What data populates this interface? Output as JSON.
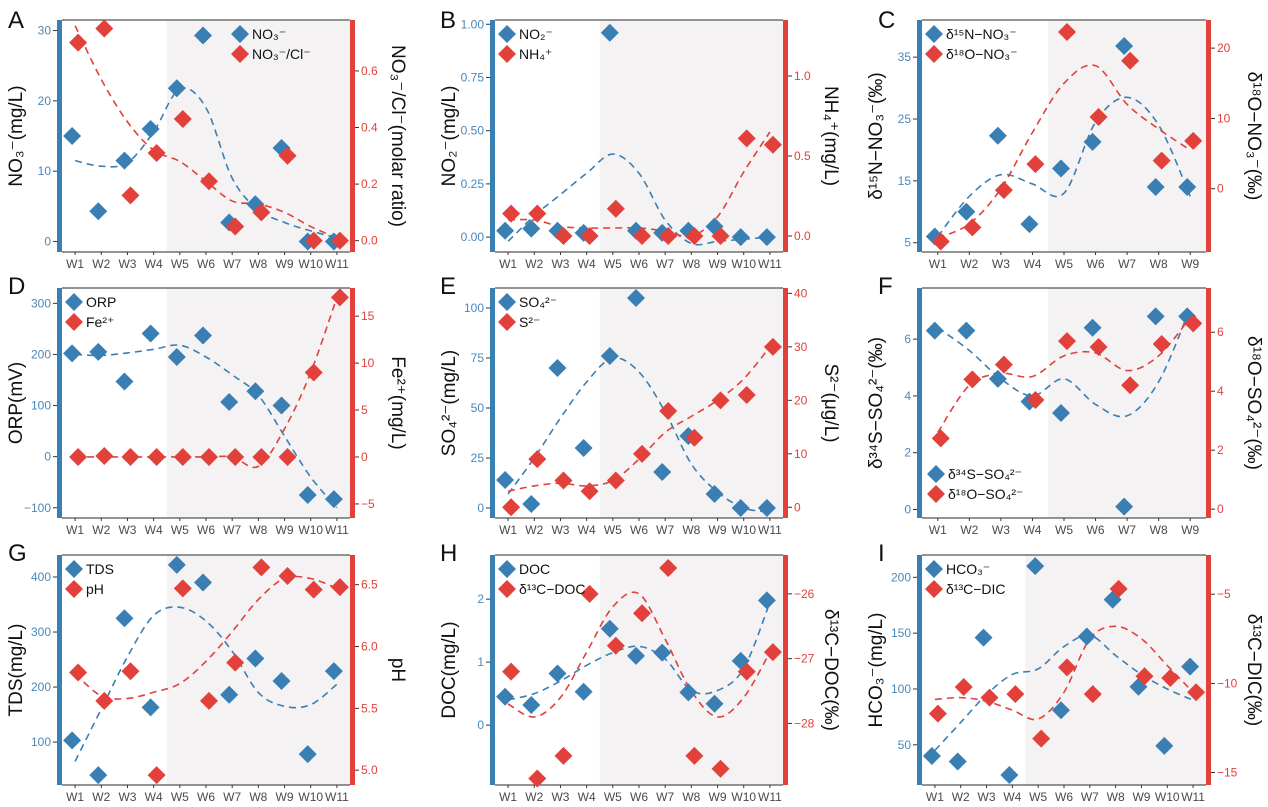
{
  "colors": {
    "blue": "#3a7fb4",
    "red": "#e2403b",
    "shade": "#f4f2f3",
    "tick_blue": "#4a88bb",
    "tick_red": "#e2403b"
  },
  "chart_data": [
    {
      "panel": "A",
      "type": "scatter",
      "categories": [
        "W1",
        "W2",
        "W3",
        "W4",
        "W5",
        "W6",
        "W7",
        "W8",
        "W9",
        "W10",
        "W11"
      ],
      "shaded_from": "W5",
      "left_axis": {
        "label": "NO₃⁻(mg/L)",
        "ylim": [
          -1.5,
          31.5
        ],
        "ticks": [
          0,
          10,
          20,
          30
        ],
        "tick_labels": [
          "0",
          "10",
          "20",
          "30"
        ]
      },
      "right_axis": {
        "label": "NO₃⁻/Cl⁻(molar ratio)",
        "ylim": [
          -0.04,
          0.78
        ],
        "ticks": [
          0,
          0.2,
          0.4,
          0.6
        ],
        "tick_labels": [
          "0.0",
          "0.2",
          "0.4",
          "0.6"
        ]
      },
      "legend_position": "top-right",
      "series": [
        {
          "name": "NO₃⁻",
          "axis": "left",
          "values": [
            15,
            4.3,
            11.5,
            16,
            21.8,
            29.3,
            2.7,
            5.3,
            13.3,
            0,
            0
          ],
          "trend": [
            11.5,
            10.7,
            11.2,
            15.6,
            21.7,
            19,
            9,
            4.5,
            2.7,
            1.5,
            0.5
          ]
        },
        {
          "name": "NO₃⁻/Cl⁻",
          "axis": "right",
          "values": [
            0.7,
            0.75,
            0.16,
            0.31,
            0.43,
            0.21,
            0.05,
            0.1,
            0.3,
            0,
            0
          ],
          "trend": [
            0.76,
            0.57,
            0.42,
            0.32,
            0.28,
            0.21,
            0.14,
            0.13,
            0.1,
            0.05,
            0.01
          ]
        }
      ]
    },
    {
      "panel": "B",
      "type": "scatter",
      "categories": [
        "W1",
        "W2",
        "W3",
        "W4",
        "W5",
        "W6",
        "W7",
        "W8",
        "W9",
        "W10",
        "W11"
      ],
      "shaded_from": "W5",
      "left_axis": {
        "label": "NO₂⁻(mg/L)",
        "ylim": [
          -0.07,
          1.02
        ],
        "ticks": [
          0,
          0.25,
          0.5,
          0.75,
          1
        ],
        "tick_labels": [
          "0.00",
          "0.25",
          "0.50",
          "0.75",
          "1.00"
        ]
      },
      "right_axis": {
        "label": "NH₄⁺(mg/L)",
        "ylim": [
          -0.1,
          1.35
        ],
        "ticks": [
          0,
          0.5,
          1
        ],
        "tick_labels": [
          "0.0",
          "0.5",
          "1.0"
        ]
      },
      "legend_position": "top-left",
      "series": [
        {
          "name": "NO₂⁻",
          "axis": "left",
          "values": [
            0.03,
            0.04,
            0.03,
            0.02,
            0.96,
            0.03,
            0.02,
            0.03,
            0.05,
            0,
            0
          ],
          "trend": [
            -0.02,
            0.1,
            0.2,
            0.3,
            0.39,
            0.3,
            0.08,
            -0.03,
            -0.02,
            -0.01,
            0
          ]
        },
        {
          "name": "NH₄⁺",
          "axis": "right",
          "values": [
            0.14,
            0.14,
            0,
            0,
            0.17,
            0,
            0,
            0,
            0,
            0.61,
            0.57
          ],
          "trend": [
            0.1,
            0.1,
            0.06,
            0.05,
            0.05,
            0.05,
            0.03,
            0,
            0.12,
            0.4,
            0.65
          ]
        }
      ]
    },
    {
      "panel": "C",
      "type": "scatter",
      "categories": [
        "W1",
        "W2",
        "W3",
        "W4",
        "W5",
        "W6",
        "W7",
        "W8",
        "W9"
      ],
      "shaded_from": "W5",
      "left_axis": {
        "label": "δ¹⁵N−NO₃⁻(‰)",
        "ylim": [
          3.5,
          41
        ],
        "ticks": [
          5,
          15,
          25,
          35
        ],
        "tick_labels": [
          "5",
          "15",
          "25",
          "35"
        ]
      },
      "right_axis": {
        "label": "δ¹⁸O−NO₃⁻(‰)",
        "ylim": [
          -9,
          24
        ],
        "ticks": [
          0,
          10,
          20
        ],
        "tick_labels": [
          "0",
          "10",
          "20"
        ]
      },
      "legend_position": "top-left",
      "series": [
        {
          "name": "δ¹⁵N−NO₃⁻",
          "axis": "left",
          "values": [
            6,
            10,
            22.3,
            8,
            17,
            21.3,
            36.8,
            14,
            14
          ],
          "trend": [
            6,
            12.5,
            16,
            14.5,
            13,
            24.5,
            28.5,
            24,
            12.5
          ]
        },
        {
          "name": "δ¹⁸O−NO₃⁻",
          "axis": "right",
          "values": [
            -7.5,
            -5.5,
            -0.2,
            3.5,
            22.3,
            10.2,
            18.2,
            4,
            6.8
          ],
          "trend": [
            -7,
            -5,
            0,
            8,
            15,
            17.5,
            12,
            8.5,
            5.5
          ]
        }
      ]
    },
    {
      "panel": "D",
      "type": "scatter",
      "categories": [
        "W1",
        "W2",
        "W3",
        "W4",
        "W5",
        "W6",
        "W7",
        "W8",
        "W9",
        "W10",
        "W11"
      ],
      "shaded_from": "W5",
      "left_axis": {
        "label": "ORP(mV)",
        "ylim": [
          -120,
          330
        ],
        "ticks": [
          -100,
          0,
          100,
          200,
          300
        ],
        "tick_labels": [
          "−100",
          "0",
          "100",
          "200",
          "300"
        ]
      },
      "right_axis": {
        "label": "Fe²⁺(mg/L)",
        "ylim": [
          -6.5,
          18
        ],
        "ticks": [
          -5,
          0,
          5,
          10,
          15
        ],
        "tick_labels": [
          "−5",
          "0",
          "5",
          "10",
          "15"
        ]
      },
      "legend_position": "top-left",
      "series": [
        {
          "name": "ORP",
          "axis": "left",
          "values": [
            202,
            205,
            147,
            241,
            195,
            237,
            107,
            128,
            100,
            -75,
            -83
          ],
          "trend": [
            200,
            198,
            203,
            210,
            218,
            195,
            160,
            120,
            40,
            -40,
            -100
          ]
        },
        {
          "name": "Fe²⁺",
          "axis": "right",
          "values": [
            0,
            0.1,
            0,
            0,
            0,
            0,
            0,
            0,
            0,
            9,
            17
          ],
          "trend": [
            0,
            0,
            0,
            0,
            0,
            0,
            0,
            -1,
            3,
            9,
            17
          ]
        }
      ]
    },
    {
      "panel": "E",
      "type": "scatter",
      "categories": [
        "W1",
        "W2",
        "W3",
        "W4",
        "W5",
        "W6",
        "W7",
        "W8",
        "W9",
        "W10",
        "W11"
      ],
      "shaded_from": "W5",
      "left_axis": {
        "label": "SO₄²⁻(mg/L)",
        "ylim": [
          -5,
          110
        ],
        "ticks": [
          0,
          25,
          50,
          75,
          100
        ],
        "tick_labels": [
          "0",
          "25",
          "50",
          "75",
          "100"
        ]
      },
      "right_axis": {
        "label": "S²⁻(μg/L)",
        "ylim": [
          -2,
          41
        ],
        "ticks": [
          0,
          10,
          20,
          30,
          40
        ],
        "tick_labels": [
          "0",
          "10",
          "20",
          "30",
          "40"
        ]
      },
      "legend_position": "top-left",
      "series": [
        {
          "name": "SO₄²⁻",
          "axis": "left",
          "values": [
            14,
            2,
            70,
            30,
            76,
            105,
            18,
            36,
            7,
            0,
            0
          ],
          "trend": [
            7,
            25,
            45,
            63,
            75,
            68,
            48,
            22,
            8,
            0,
            -2
          ]
        },
        {
          "name": "S²⁻",
          "axis": "right",
          "values": [
            0,
            9,
            5,
            3,
            5,
            10,
            18,
            13,
            20,
            21,
            30
          ],
          "trend": [
            3,
            4,
            4.5,
            4,
            5,
            9,
            14,
            17,
            20,
            24,
            30
          ]
        }
      ]
    },
    {
      "panel": "F",
      "type": "scatter",
      "categories": [
        "W1",
        "W2",
        "W3",
        "W4",
        "W5",
        "W6",
        "W7",
        "W8",
        "W9"
      ],
      "shaded_from": "W5",
      "left_axis": {
        "label": "δ³⁴S−SO₄²⁻(‰)",
        "ylim": [
          -0.3,
          7.8
        ],
        "ticks": [
          0,
          2,
          4,
          6
        ],
        "tick_labels": [
          "0",
          "2",
          "4",
          "6"
        ]
      },
      "right_axis": {
        "label": "δ¹⁸O−SO₄²⁻(‰)",
        "ylim": [
          -0.3,
          7.5
        ],
        "ticks": [
          0,
          2,
          4,
          6
        ],
        "tick_labels": [
          "0",
          "2",
          "4",
          "6"
        ]
      },
      "legend_position": "bottom-left",
      "series": [
        {
          "name": "δ³⁴S−SO₄²⁻",
          "axis": "left",
          "values": [
            6.3,
            6.3,
            4.6,
            3.8,
            3.4,
            6.4,
            0.1,
            6.8,
            6.8
          ],
          "trend": [
            6.4,
            5.6,
            4.6,
            4,
            4.6,
            3.7,
            3.3,
            4.5,
            7.1
          ]
        },
        {
          "name": "δ¹⁸O−SO₄²⁻",
          "axis": "right",
          "values": [
            2.4,
            4.4,
            4.9,
            3.7,
            5.7,
            5.5,
            4.2,
            5.6,
            6.3
          ],
          "trend": [
            2.6,
            4.2,
            4.6,
            4.5,
            5.2,
            5.3,
            4.7,
            5.2,
            6.5
          ]
        }
      ]
    },
    {
      "panel": "G",
      "type": "scatter",
      "categories": [
        "W1",
        "W2",
        "W3",
        "W4",
        "W5",
        "W6",
        "W7",
        "W8",
        "W9",
        "W10",
        "W11"
      ],
      "shaded_from": "W5",
      "left_axis": {
        "label": "TDS(mg/L)",
        "ylim": [
          22,
          440
        ],
        "ticks": [
          100,
          200,
          300,
          400
        ],
        "tick_labels": [
          "100",
          "200",
          "300",
          "400"
        ]
      },
      "right_axis": {
        "label": "pH",
        "ylim": [
          4.88,
          6.74
        ],
        "ticks": [
          5,
          5.5,
          6,
          6.5
        ],
        "tick_labels": [
          "5.0",
          "5.5",
          "6.0",
          "6.5"
        ]
      },
      "legend_position": "top-left",
      "series": [
        {
          "name": "TDS",
          "axis": "left",
          "values": [
            103,
            40,
            325,
            163,
            422,
            390,
            186,
            252,
            211,
            78,
            229
          ],
          "trend": [
            65,
            160,
            255,
            330,
            345,
            320,
            265,
            190,
            165,
            168,
            205
          ]
        },
        {
          "name": "pH",
          "axis": "right",
          "values": [
            5.79,
            5.56,
            5.8,
            4.96,
            6.47,
            5.56,
            5.87,
            6.64,
            6.57,
            6.46,
            6.48
          ],
          "trend": [
            5.78,
            5.6,
            5.58,
            5.63,
            5.7,
            5.88,
            6.12,
            6.38,
            6.55,
            6.55,
            6.47
          ]
        }
      ]
    },
    {
      "panel": "H",
      "type": "scatter",
      "categories": [
        "W1",
        "W2",
        "W3",
        "W4",
        "W5",
        "W6",
        "W7",
        "W8",
        "W9",
        "W10",
        "W11"
      ],
      "shaded_from": "W5",
      "left_axis": {
        "label": "DOC(mg/L)",
        "ylim": [
          -0.95,
          2.7
        ],
        "ticks": [
          0,
          1,
          2
        ],
        "tick_labels": [
          "0",
          "1",
          "2"
        ]
      },
      "right_axis": {
        "label": "δ¹³C−DOC(‰)",
        "ylim": [
          -28.95,
          -25.4
        ],
        "ticks": [
          -28,
          -27,
          -26
        ],
        "tick_labels": [
          "−28",
          "−27",
          "−26"
        ]
      },
      "legend_position": "top-left",
      "series": [
        {
          "name": "DOC",
          "axis": "left",
          "values": [
            0.45,
            0.32,
            0.82,
            0.53,
            1.53,
            1.1,
            1.15,
            0.52,
            0.34,
            1.02,
            1.98
          ],
          "trend": [
            0.4,
            0.5,
            0.7,
            0.95,
            1.15,
            1.25,
            1.05,
            0.55,
            0.55,
            0.9,
            1.95
          ]
        },
        {
          "name": "δ¹³C−DOC",
          "axis": "right",
          "values": [
            -27.2,
            -28.85,
            -28.5,
            -26,
            -26.8,
            -26.3,
            -25.6,
            -28.5,
            -28.7,
            -27.2,
            -26.9
          ],
          "trend": [
            -27.7,
            -27.9,
            -27.6,
            -26.9,
            -26.2,
            -26,
            -26.7,
            -27.5,
            -27.9,
            -27.6,
            -26.9
          ]
        }
      ]
    },
    {
      "panel": "I",
      "type": "scatter",
      "categories": [
        "W1",
        "W2",
        "W3",
        "W4",
        "W5",
        "W6",
        "W7",
        "W8",
        "W9",
        "W10",
        "W11"
      ],
      "shaded_from": "W5",
      "left_axis": {
        "label": "HCO₃⁻(mg/L)",
        "ylim": [
          14,
          220
        ],
        "ticks": [
          50,
          100,
          150,
          200
        ],
        "tick_labels": [
          "50",
          "100",
          "150",
          "200"
        ]
      },
      "right_axis": {
        "label": "δ¹³C−DIC(‰)",
        "ylim": [
          -15.7,
          -2.8
        ],
        "ticks": [
          -15,
          -10,
          -5
        ],
        "tick_labels": [
          "−15",
          "−10",
          "−5"
        ]
      },
      "legend_position": "top-left",
      "series": [
        {
          "name": "HCO₃⁻",
          "axis": "left",
          "values": [
            40,
            35,
            146,
            23,
            210,
            81,
            147,
            180,
            102,
            49,
            120
          ],
          "trend": [
            45,
            70,
            95,
            113,
            118,
            138,
            148,
            130,
            113,
            100,
            90
          ]
        },
        {
          "name": "δ¹³C−DIC",
          "axis": "right",
          "values": [
            -11.7,
            -10.2,
            -10.8,
            -10.6,
            -13.1,
            -9.1,
            -10.6,
            -4.7,
            -9.6,
            -9.7,
            -10.5
          ],
          "trend": [
            -10.9,
            -10.8,
            -11,
            -11.5,
            -12,
            -10.5,
            -7.5,
            -6.8,
            -7.5,
            -9,
            -10.5
          ]
        }
      ]
    }
  ]
}
